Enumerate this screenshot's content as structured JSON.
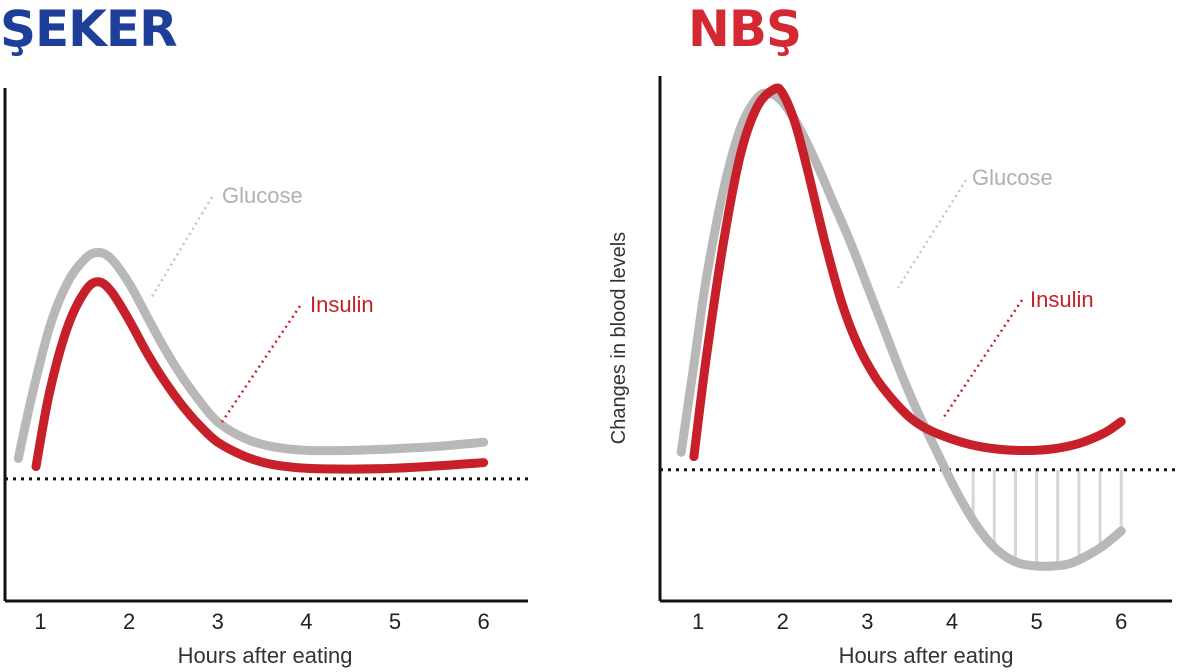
{
  "titles": {
    "left": "ŞEKER",
    "right": "NBŞ"
  },
  "colors": {
    "left_title": "#1d3f9a",
    "right_title": "#d42832",
    "glucose": "#b8b8b8",
    "insulin": "#c8202a",
    "glucose_label": "#b0b0b0",
    "insulin_label": "#c8202a",
    "axis": "#111111"
  },
  "chart_data": [
    {
      "type": "line",
      "title": "ŞEKER",
      "xlabel": "Hours after eating",
      "ylabel": "",
      "xlim": [
        0.6,
        6.5
      ],
      "ylim": [
        -1.5,
        4.8
      ],
      "x_ticks": [
        1,
        2,
        3,
        4,
        5,
        6
      ],
      "baseline": 0,
      "annotations": [
        "Glucose",
        "Insulin"
      ],
      "series": [
        {
          "name": "Glucose",
          "x": [
            0.75,
            0.9,
            1.1,
            1.3,
            1.5,
            1.65,
            1.8,
            2.0,
            2.2,
            2.4,
            2.6,
            2.8,
            3.0,
            3.3,
            3.6,
            4.0,
            4.5,
            5.0,
            5.5,
            6.0
          ],
          "y": [
            0.25,
            1.0,
            1.85,
            2.4,
            2.7,
            2.78,
            2.7,
            2.4,
            2.0,
            1.6,
            1.25,
            0.95,
            0.7,
            0.5,
            0.4,
            0.35,
            0.35,
            0.37,
            0.4,
            0.45
          ]
        },
        {
          "name": "Insulin",
          "x": [
            0.95,
            1.1,
            1.3,
            1.5,
            1.65,
            1.8,
            2.0,
            2.2,
            2.4,
            2.6,
            2.8,
            3.0,
            3.3,
            3.6,
            4.0,
            4.5,
            5.0,
            5.5,
            6.0
          ],
          "y": [
            0.15,
            1.05,
            1.85,
            2.3,
            2.42,
            2.3,
            1.95,
            1.55,
            1.2,
            0.9,
            0.65,
            0.45,
            0.28,
            0.18,
            0.13,
            0.12,
            0.13,
            0.16,
            0.2
          ]
        }
      ]
    },
    {
      "type": "line",
      "title": "NBŞ",
      "xlabel": "Hours after eating",
      "ylabel": "Changes in blood levels",
      "xlim": [
        0.55,
        6.6
      ],
      "ylim": [
        -1.5,
        4.5
      ],
      "x_ticks": [
        1,
        2,
        3,
        4,
        5,
        6
      ],
      "baseline": 0,
      "annotations": [
        "Glucose",
        "Insulin"
      ],
      "series": [
        {
          "name": "Glucose",
          "x": [
            0.8,
            0.95,
            1.1,
            1.3,
            1.5,
            1.7,
            1.85,
            2.0,
            2.2,
            2.4,
            2.6,
            2.8,
            3.0,
            3.2,
            3.4,
            3.6,
            3.8,
            4.0,
            4.2,
            4.4,
            4.6,
            4.8,
            5.0,
            5.2,
            5.4,
            5.6,
            5.8,
            6.0
          ],
          "y": [
            0.2,
            1.2,
            2.2,
            3.2,
            3.9,
            4.25,
            4.3,
            4.2,
            3.9,
            3.5,
            3.05,
            2.6,
            2.1,
            1.6,
            1.1,
            0.65,
            0.25,
            -0.15,
            -0.5,
            -0.78,
            -0.97,
            -1.07,
            -1.1,
            -1.1,
            -1.07,
            -0.98,
            -0.86,
            -0.7
          ]
        },
        {
          "name": "Insulin",
          "x": [
            0.95,
            1.1,
            1.3,
            1.5,
            1.7,
            1.9,
            2.0,
            2.15,
            2.3,
            2.5,
            2.7,
            2.9,
            3.1,
            3.3,
            3.5,
            3.7,
            4.0,
            4.3,
            4.6,
            4.9,
            5.2,
            5.5,
            5.8,
            6.0
          ],
          "y": [
            0.15,
            1.3,
            2.6,
            3.6,
            4.15,
            4.35,
            4.3,
            3.95,
            3.4,
            2.6,
            1.9,
            1.4,
            1.05,
            0.8,
            0.6,
            0.47,
            0.35,
            0.27,
            0.23,
            0.22,
            0.24,
            0.3,
            0.42,
            0.55
          ]
        }
      ]
    }
  ]
}
